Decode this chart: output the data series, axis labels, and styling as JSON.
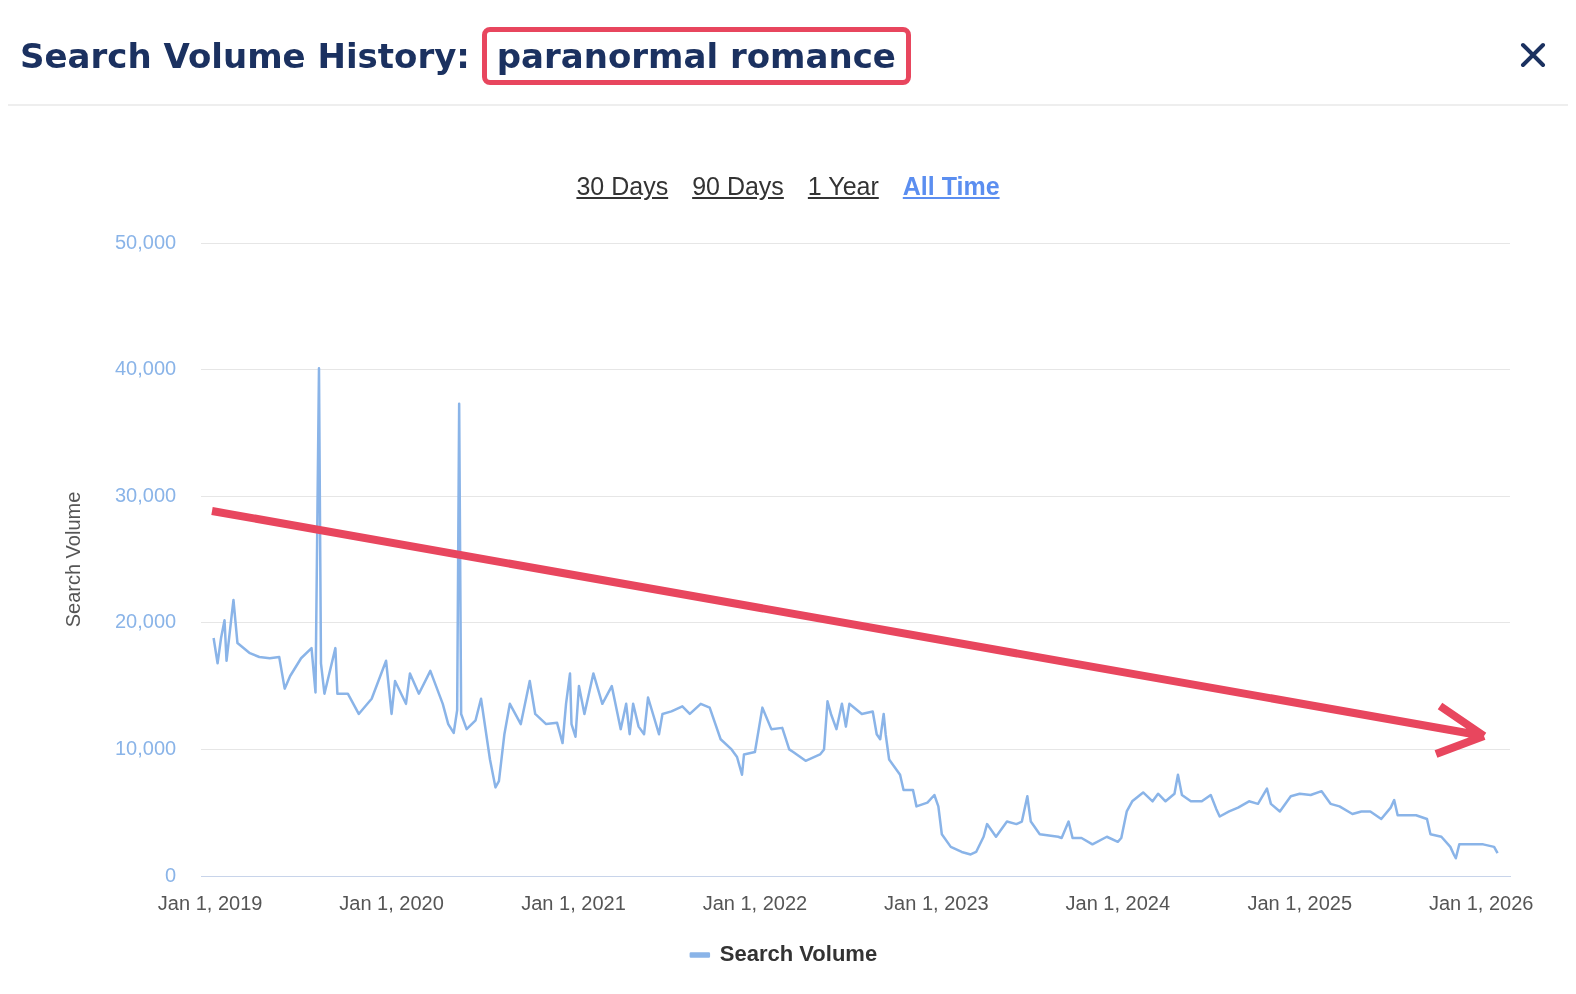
{
  "chart_data": {
    "type": "line",
    "title": "Search Volume History: paranormal romance",
    "ylabel": "Search Volume",
    "annotations": [
      "30 Days",
      "90 Days",
      "1 Year",
      "All Time"
    ],
    "x": [
      "2019-01-08",
      "2019-01-16",
      "2019-01-23",
      "2019-01-30",
      "2019-02-03",
      "2019-02-14",
      "2019-02-17",
      "2019-02-25",
      "2019-03-22",
      "2019-04-10",
      "2019-05-01",
      "2019-05-20",
      "2019-05-31",
      "2019-06-11",
      "2019-07-03",
      "2019-07-24",
      "2019-08-01",
      "2019-08-08",
      "2019-08-12",
      "2019-08-19",
      "2019-09-10",
      "2019-09-14",
      "2019-10-05",
      "2019-10-27",
      "2019-11-22",
      "2019-12-21",
      "2020-01-01",
      "2020-01-08",
      "2020-01-30",
      "2020-02-07",
      "2020-02-25",
      "2020-03-19",
      "2020-04-13",
      "2020-04-24",
      "2020-05-05",
      "2020-05-12",
      "2020-05-16",
      "2020-05-20",
      "2020-05-31",
      "2020-06-18",
      "2020-06-29",
      "2020-07-17",
      "2020-07-28",
      "2020-08-04",
      "2020-08-15",
      "2020-08-26",
      "2020-09-17",
      "2020-10-05",
      "2020-10-16",
      "2020-11-07",
      "2020-11-29",
      "2020-12-10",
      "2020-12-17",
      "2020-12-25",
      "2020-12-28",
      "2021-01-05",
      "2021-01-12",
      "2021-01-23",
      "2021-02-10",
      "2021-02-28",
      "2021-03-19",
      "2021-04-06",
      "2021-04-17",
      "2021-04-24",
      "2021-05-01",
      "2021-05-12",
      "2021-05-23",
      "2021-05-31",
      "2021-06-22",
      "2021-06-29",
      "2021-07-17",
      "2021-08-08",
      "2021-08-23",
      "2021-09-14",
      "2021-10-02",
      "2021-10-24",
      "2021-11-15",
      "2021-11-26",
      "2021-12-06",
      "2021-12-10",
      "2022-01-01",
      "2022-01-16",
      "2022-02-03",
      "2022-02-25",
      "2022-03-11",
      "2022-03-19",
      "2022-04-13",
      "2022-05-12",
      "2022-05-20",
      "2022-05-27",
      "2022-06-03",
      "2022-06-14",
      "2022-06-25",
      "2022-07-03",
      "2022-07-10",
      "2022-08-04",
      "2022-08-26",
      "2022-09-03",
      "2022-09-10",
      "2022-09-17",
      "2022-09-21",
      "2022-09-28",
      "2022-10-20",
      "2022-10-27",
      "2022-11-15",
      "2022-11-22",
      "2022-12-14",
      "2022-12-28",
      "2023-01-05",
      "2023-01-12",
      "2023-01-30",
      "2023-02-21",
      "2023-03-11",
      "2023-03-22",
      "2023-04-06",
      "2023-04-13",
      "2023-05-01",
      "2023-05-23",
      "2023-06-11",
      "2023-06-22",
      "2023-07-03",
      "2023-07-10",
      "2023-07-28",
      "2023-09-03",
      "2023-09-10",
      "2023-09-24",
      "2023-10-02",
      "2023-10-20",
      "2023-11-11",
      "2023-12-10",
      "2024-01-01",
      "2024-01-08",
      "2024-01-19",
      "2024-01-30",
      "2024-02-21",
      "2024-03-11",
      "2024-03-22",
      "2024-04-06",
      "2024-04-24",
      "2024-05-01",
      "2024-05-09",
      "2024-05-27",
      "2024-06-18",
      "2024-07-06",
      "2024-07-17",
      "2024-07-24",
      "2024-08-12",
      "2024-08-30",
      "2024-09-21",
      "2024-10-09",
      "2024-10-27",
      "2024-11-04",
      "2024-11-22",
      "2024-12-14",
      "2025-01-01",
      "2025-01-23",
      "2025-02-14",
      "2025-03-04",
      "2025-03-22",
      "2025-04-17",
      "2025-05-05",
      "2025-05-23",
      "2025-06-14",
      "2025-07-03",
      "2025-07-10",
      "2025-07-17",
      "2025-08-04",
      "2025-08-23",
      "2025-09-14",
      "2025-09-21",
      "2025-10-13",
      "2025-10-31",
      "2025-11-07",
      "2025-11-11",
      "2025-11-18",
      "2025-12-10",
      "2026-01-05",
      "2026-01-27",
      "2026-02-03"
    ],
    "series": [
      {
        "name": "Search Volume",
        "color": "#8ab4e8",
        "values": [
          18800,
          16800,
          18800,
          20200,
          17000,
          20800,
          21800,
          18400,
          17600,
          17300,
          17200,
          17300,
          14800,
          15800,
          17200,
          18000,
          14500,
          40100,
          16800,
          14400,
          18000,
          14400,
          14400,
          12800,
          14000,
          17000,
          12800,
          15400,
          13600,
          16000,
          14400,
          16200,
          13600,
          12000,
          11300,
          13100,
          37300,
          12800,
          11600,
          12300,
          14000,
          9200,
          7000,
          7500,
          11200,
          13600,
          12000,
          15400,
          12800,
          12000,
          12100,
          10500,
          13600,
          16000,
          12000,
          11000,
          15000,
          12800,
          16000,
          13600,
          15000,
          11600,
          13600,
          11200,
          13600,
          11800,
          11200,
          14100,
          11200,
          12800,
          13000,
          13400,
          12800,
          13600,
          13300,
          10800,
          10000,
          9400,
          8000,
          9600,
          9800,
          13300,
          11600,
          11700,
          10000,
          9800,
          9100,
          9600,
          10000,
          13800,
          12800,
          11600,
          13600,
          11800,
          13600,
          12800,
          13000,
          11200,
          10800,
          12800,
          11200,
          9200,
          8000,
          6800,
          6800,
          5500,
          5800,
          6400,
          5500,
          3300,
          2300,
          1900,
          1700,
          1900,
          3100,
          4100,
          3100,
          4300,
          4100,
          4300,
          6300,
          4300,
          3300,
          3100,
          3000,
          4300,
          3000,
          3000,
          2500,
          3100,
          2700,
          3000,
          5100,
          5900,
          6600,
          5900,
          6500,
          5900,
          6500,
          8000,
          6400,
          5900,
          5900,
          6400,
          5300,
          4700,
          5100,
          5400,
          5900,
          5700,
          6900,
          5700,
          5100,
          6300,
          6500,
          6400,
          6700,
          5700,
          5500,
          4900,
          5100,
          5100,
          4500,
          5400,
          6000,
          4800,
          4800,
          4800,
          4500,
          3300,
          3100,
          2300,
          1700,
          1400,
          2500,
          2500,
          2500,
          2300,
          1800
        ]
      }
    ],
    "xlim": [
      "2018-12-14",
      "2026-02-28"
    ],
    "xticks": [
      {
        "value": "2019-01-01",
        "label": "Jan 1, 2019"
      },
      {
        "value": "2020-01-01",
        "label": "Jan 1, 2020"
      },
      {
        "value": "2021-01-01",
        "label": "Jan 1, 2021"
      },
      {
        "value": "2022-01-01",
        "label": "Jan 1, 2022"
      },
      {
        "value": "2023-01-01",
        "label": "Jan 1, 2023"
      },
      {
        "value": "2024-01-01",
        "label": "Jan 1, 2024"
      },
      {
        "value": "2025-01-01",
        "label": "Jan 1, 2025"
      },
      {
        "value": "2026-01-01",
        "label": "Jan 1, 2026"
      }
    ],
    "ylim": [
      0,
      50000
    ],
    "yticks": [
      0,
      {
        "value": 10000,
        "label": "10,000"
      },
      {
        "value": 20000,
        "label": "20,000"
      },
      {
        "value": 30000,
        "label": "30,000"
      },
      {
        "value": 40000,
        "label": "40,000"
      },
      {
        "value": 50000,
        "label": "50,000"
      }
    ],
    "grid": "y",
    "legend": "bottom"
  }
}
